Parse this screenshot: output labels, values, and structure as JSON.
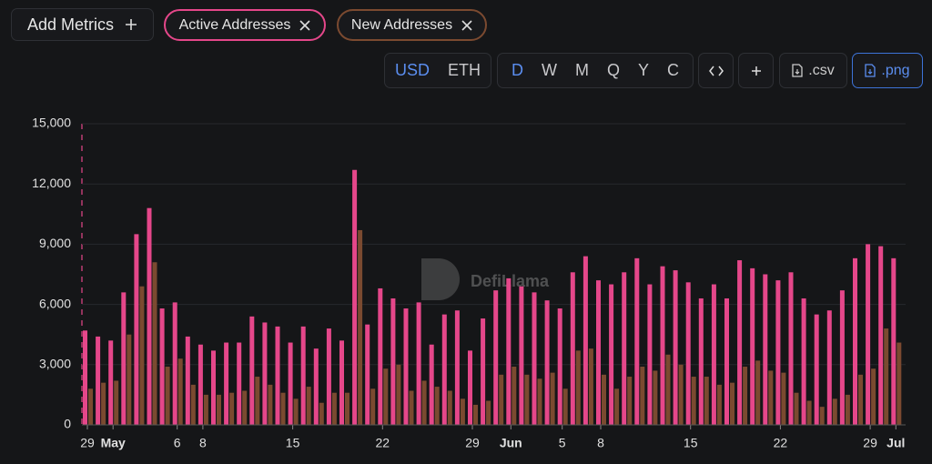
{
  "ui": {
    "add_metrics": "Add Metrics",
    "currencies": [
      "USD",
      "ETH"
    ],
    "periods": [
      "D",
      "W",
      "M",
      "Q",
      "Y",
      "C"
    ],
    "csv": ".csv",
    "png": ".png",
    "watermark": "DefiLlama"
  },
  "chart_data": {
    "type": "bar",
    "categories": [
      "29",
      null,
      "May",
      null,
      null,
      null,
      null,
      "6",
      null,
      "8",
      null,
      null,
      null,
      null,
      null,
      null,
      "15",
      null,
      null,
      null,
      null,
      null,
      null,
      "22",
      null,
      null,
      null,
      null,
      null,
      null,
      "29",
      null,
      null,
      "Jun",
      null,
      null,
      null,
      "5",
      null,
      null,
      "8",
      null,
      null,
      null,
      null,
      null,
      null,
      "15",
      null,
      null,
      null,
      null,
      null,
      null,
      "22",
      null,
      null,
      null,
      null,
      null,
      null,
      "29",
      null,
      "Jul"
    ],
    "series": [
      {
        "name": "Active Addresses",
        "color": "#e5478a",
        "values": [
          4700,
          4400,
          4200,
          6600,
          9500,
          10800,
          5800,
          6100,
          4400,
          4000,
          3700,
          4100,
          4100,
          5400,
          5100,
          4900,
          4100,
          4900,
          3800,
          4800,
          4200,
          12700,
          5000,
          6800,
          6300,
          5800,
          6100,
          4000,
          5500,
          5700,
          3700,
          5300,
          6700,
          7300,
          6900,
          6600,
          6200,
          5800,
          7600,
          8400,
          7200,
          7000,
          7600,
          8300,
          7000,
          7900,
          7700,
          7100,
          6300,
          7000,
          6300,
          8200,
          7800,
          7500,
          7200,
          7600,
          6300,
          5500,
          5700,
          6700,
          8300,
          9000,
          8900,
          8300
        ]
      },
      {
        "name": "New Addresses",
        "color": "#7b4a30",
        "values": [
          1800,
          2100,
          2200,
          4500,
          6900,
          8100,
          2900,
          3300,
          2000,
          1500,
          1500,
          1600,
          1700,
          2400,
          2000,
          1600,
          1300,
          1900,
          1100,
          1600,
          1600,
          9700,
          1800,
          2800,
          3000,
          1700,
          2200,
          1900,
          1700,
          1300,
          1000,
          1200,
          2500,
          2900,
          2500,
          2300,
          2600,
          1800,
          3700,
          3800,
          2500,
          1800,
          2400,
          2900,
          2700,
          3500,
          3000,
          2400,
          2400,
          2000,
          2100,
          2900,
          3200,
          2700,
          2600,
          1600,
          1200,
          900,
          1300,
          1500,
          2500,
          2800,
          4800,
          4100
        ]
      }
    ],
    "ylim": [
      0,
      15000
    ],
    "yticks": [
      0,
      {
        "value": 3000,
        "label": "3,000"
      },
      {
        "value": 6000,
        "label": "6,000"
      },
      {
        "value": 9000,
        "label": "9,000"
      },
      {
        "value": 12000,
        "label": "12,000"
      },
      {
        "value": 15000,
        "label": "15,000"
      }
    ],
    "grid": true
  }
}
